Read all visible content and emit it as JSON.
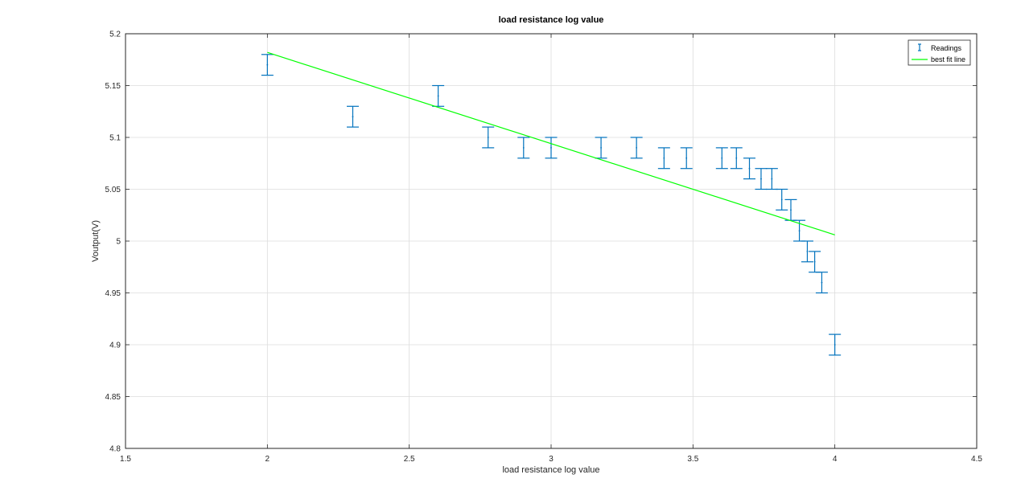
{
  "chart_data": {
    "type": "scatter",
    "title": "load resistance log value",
    "xlabel": "load resistance log value",
    "ylabel": "Voutput(V)",
    "xlim": [
      1.5,
      4.5
    ],
    "ylim": [
      4.8,
      5.2
    ],
    "xticks": [
      1.5,
      2,
      2.5,
      3,
      3.5,
      4,
      4.5
    ],
    "xtick_labels": [
      "1.5",
      "2",
      "2.5",
      "3",
      "3.5",
      "4",
      "4.5"
    ],
    "yticks": [
      4.8,
      4.85,
      4.9,
      4.95,
      5.0,
      5.05,
      5.1,
      5.15,
      5.2
    ],
    "ytick_labels": [
      "4.8",
      "4.85",
      "4.9",
      "4.95",
      "5",
      "5.05",
      "5.1",
      "5.15",
      "5.2"
    ],
    "grid": true,
    "legend_position": "top-right",
    "series": [
      {
        "name": "Readings",
        "kind": "errorbar",
        "color": "#0072bd",
        "points": [
          {
            "x": 2.0,
            "y": 5.17,
            "err": 0.01
          },
          {
            "x": 2.301,
            "y": 5.12,
            "err": 0.01
          },
          {
            "x": 2.602,
            "y": 5.14,
            "err": 0.01
          },
          {
            "x": 2.778,
            "y": 5.1,
            "err": 0.01
          },
          {
            "x": 2.903,
            "y": 5.09,
            "err": 0.01
          },
          {
            "x": 3.0,
            "y": 5.09,
            "err": 0.01
          },
          {
            "x": 3.176,
            "y": 5.09,
            "err": 0.01
          },
          {
            "x": 3.301,
            "y": 5.09,
            "err": 0.01
          },
          {
            "x": 3.398,
            "y": 5.08,
            "err": 0.01
          },
          {
            "x": 3.477,
            "y": 5.08,
            "err": 0.01
          },
          {
            "x": 3.602,
            "y": 5.08,
            "err": 0.01
          },
          {
            "x": 3.653,
            "y": 5.08,
            "err": 0.01
          },
          {
            "x": 3.699,
            "y": 5.07,
            "err": 0.01
          },
          {
            "x": 3.74,
            "y": 5.06,
            "err": 0.01
          },
          {
            "x": 3.778,
            "y": 5.06,
            "err": 0.01
          },
          {
            "x": 3.813,
            "y": 5.04,
            "err": 0.01
          },
          {
            "x": 3.845,
            "y": 5.03,
            "err": 0.01
          },
          {
            "x": 3.875,
            "y": 5.01,
            "err": 0.01
          },
          {
            "x": 3.903,
            "y": 4.99,
            "err": 0.01
          },
          {
            "x": 3.929,
            "y": 4.98,
            "err": 0.01
          },
          {
            "x": 3.954,
            "y": 4.96,
            "err": 0.01
          },
          {
            "x": 4.0,
            "y": 4.9,
            "err": 0.01
          }
        ]
      },
      {
        "name": "best fit line",
        "kind": "line",
        "color": "#00ff00",
        "x": [
          2.0,
          4.0
        ],
        "y": [
          5.182,
          5.006
        ]
      }
    ]
  }
}
